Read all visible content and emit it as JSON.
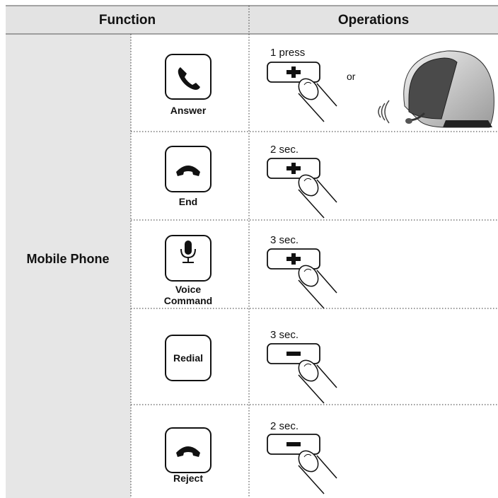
{
  "header": {
    "function": "Function",
    "operations": "Operations"
  },
  "group": "Mobile Phone",
  "rows": [
    {
      "function": "Answer",
      "duration": "1 press",
      "alternative": "or"
    },
    {
      "function": "End",
      "duration": "2 sec."
    },
    {
      "function": "Voice Command",
      "duration": "3 sec."
    },
    {
      "function": "Redial",
      "duration": "3 sec."
    },
    {
      "function": "Reject",
      "duration": "2 sec."
    }
  ]
}
